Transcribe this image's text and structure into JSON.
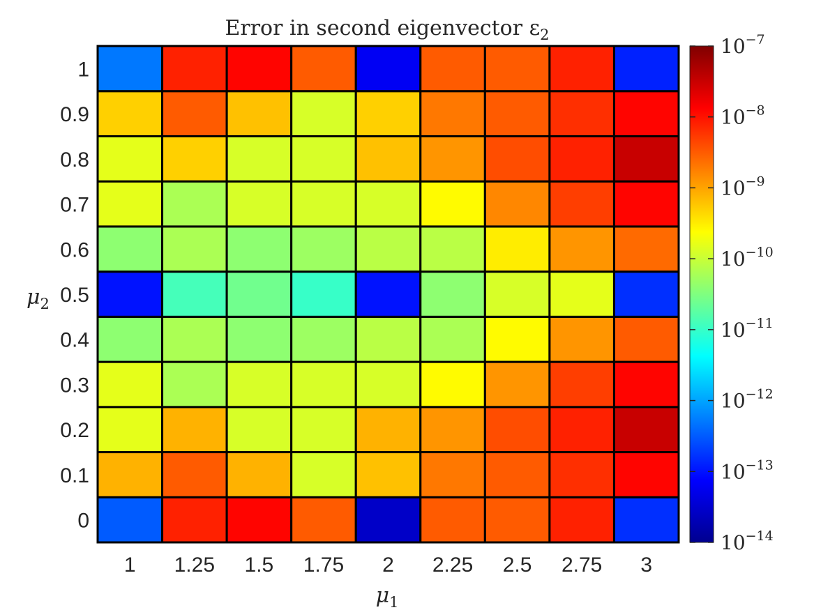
{
  "chart_data": {
    "type": "heatmap",
    "title": "Error in second eigenvector ε",
    "title_subscript": "2",
    "xlabel": "μ",
    "xlabel_subscript": "1",
    "ylabel": "μ",
    "ylabel_subscript": "2",
    "x": [
      "1",
      "1.25",
      "1.5",
      "1.75",
      "2",
      "2.25",
      "2.5",
      "2.75",
      "3"
    ],
    "y": [
      "0",
      "0.1",
      "0.2",
      "0.3",
      "0.4",
      "0.5",
      "0.6",
      "0.7",
      "0.8",
      "0.9",
      "1"
    ],
    "colorbar": {
      "scale": "log",
      "range_exponent": [
        -14,
        -7
      ],
      "colormap": "jet",
      "tick_base": "10",
      "tick_exponents": [
        "−14",
        "−13",
        "−12",
        "−11",
        "−10",
        "−9",
        "−8",
        "−7"
      ]
    },
    "grid": true,
    "z_log10": [
      [
        -12.5,
        -8.1,
        -7.9,
        -8.5,
        -13.5,
        -8.5,
        -8.5,
        -8.1,
        -12.8
      ],
      [
        -9.1,
        -8.5,
        -9.1,
        -9.9,
        -9.2,
        -8.7,
        -8.5,
        -8.2,
        -7.9
      ],
      [
        -9.8,
        -9.1,
        -9.9,
        -9.9,
        -9.1,
        -8.9,
        -8.4,
        -8.1,
        -7.5
      ],
      [
        -9.8,
        -10.2,
        -9.9,
        -9.9,
        -9.9,
        -9.6,
        -8.9,
        -8.3,
        -7.9
      ],
      [
        -10.4,
        -10.2,
        -10.4,
        -10.3,
        -10.1,
        -10.2,
        -9.6,
        -8.9,
        -8.5
      ],
      [
        -13.0,
        -10.9,
        -10.6,
        -11.0,
        -13.0,
        -10.4,
        -9.9,
        -9.8,
        -12.8
      ],
      [
        -10.4,
        -10.2,
        -10.4,
        -10.3,
        -10.1,
        -10.1,
        -9.5,
        -8.9,
        -8.6
      ],
      [
        -9.8,
        -10.2,
        -9.9,
        -9.9,
        -9.9,
        -9.6,
        -8.8,
        -8.3,
        -7.9
      ],
      [
        -9.8,
        -9.3,
        -9.9,
        -9.9,
        -9.2,
        -8.9,
        -8.4,
        -8.1,
        -7.5
      ],
      [
        -9.3,
        -8.5,
        -9.2,
        -9.9,
        -9.3,
        -8.7,
        -8.5,
        -8.2,
        -7.9
      ],
      [
        -12.3,
        -8.1,
        -7.9,
        -8.5,
        -13.2,
        -8.5,
        -8.5,
        -8.1,
        -12.9
      ]
    ]
  }
}
